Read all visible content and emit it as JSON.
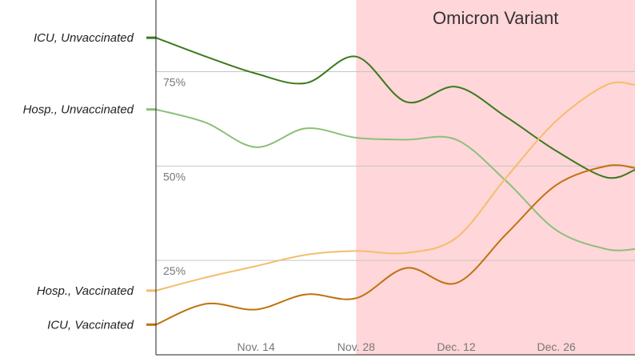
{
  "chart_data": {
    "type": "line",
    "title": "",
    "xlabel": "",
    "ylabel": "",
    "x": [
      "2021-10-31",
      "2021-11-07",
      "2021-11-14",
      "2021-11-21",
      "2021-11-28",
      "2021-12-05",
      "2021-12-12",
      "2021-12-19",
      "2021-12-26",
      "2022-01-02",
      "2022-01-06"
    ],
    "x_ticks": [
      "Nov. 14",
      "Nov. 28",
      "Dec. 12",
      "Dec. 26"
    ],
    "y_ticks": [
      "25%",
      "50%",
      "75%"
    ],
    "ylim": [
      0,
      94
    ],
    "grid": true,
    "series": [
      {
        "name": "ICU, Unvaccinated",
        "color": "#3c7a1f",
        "values": [
          84,
          79,
          74.5,
          72,
          79,
          67,
          71,
          63,
          54,
          47,
          49
        ]
      },
      {
        "name": "Hosp., Unvaccinated",
        "color": "#8cc07a",
        "values": [
          65,
          61.5,
          55,
          60,
          57.5,
          57,
          57,
          46,
          33,
          28,
          28
        ]
      },
      {
        "name": "Hosp., Vaccinated",
        "color": "#f2be6c",
        "values": [
          17,
          20.5,
          23.5,
          26.5,
          27.5,
          27,
          31,
          47,
          62,
          71.5,
          71.5
        ]
      },
      {
        "name": "ICU, Vaccinated",
        "color": "#bf720e",
        "values": [
          8,
          13.5,
          12,
          16,
          15,
          23,
          19,
          32,
          45,
          50,
          49.5
        ]
      }
    ],
    "annotations": [
      {
        "label": "Omicron Variant",
        "x_start": "2021-11-28",
        "x_end": "2022-01-06",
        "color": "#ffd6d9"
      }
    ]
  }
}
